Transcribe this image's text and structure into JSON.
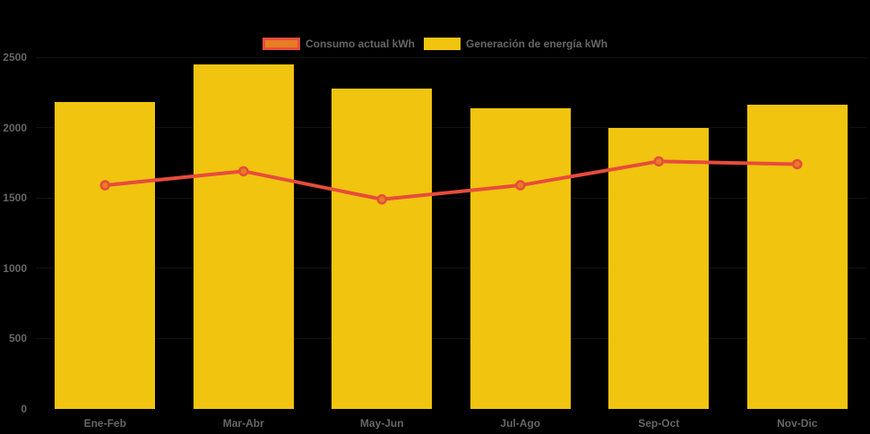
{
  "legend": {
    "items": [
      {
        "label": "Consumo actual kWh",
        "swatch": "orange-fill-red-border"
      },
      {
        "label": "Generación de energía kWh",
        "swatch": "yellow-fill"
      }
    ]
  },
  "colors": {
    "background": "#000000",
    "bar_fill": "#F1C40F",
    "line_stroke": "#E74C3C",
    "marker_fill": "#E67E22",
    "axis_text": "#666666",
    "gridline": "rgba(255,255,255,0.07)"
  },
  "chart_data": {
    "type": "bar",
    "categories": [
      "Ene-Feb",
      "Mar-Abr",
      "May-Jun",
      "Jul-Ago",
      "Sep-Oct",
      "Nov-Dic"
    ],
    "series": [
      {
        "name": "Generación de energía kWh",
        "type": "bar",
        "color": "#F1C40F",
        "values": [
          2180,
          2450,
          2280,
          2140,
          2000,
          2160
        ]
      },
      {
        "name": "Consumo actual kWh",
        "type": "line",
        "color": "#E74C3C",
        "marker_color": "#E67E22",
        "values": [
          1590,
          1690,
          1490,
          1590,
          1760,
          1740
        ]
      }
    ],
    "title": "",
    "xlabel": "",
    "ylabel": "",
    "ylim": [
      0,
      2500
    ],
    "yticks": [
      0,
      500,
      1000,
      1500,
      2000,
      2500
    ],
    "grid": "faint-horizontal",
    "legend_position": "top-center"
  }
}
